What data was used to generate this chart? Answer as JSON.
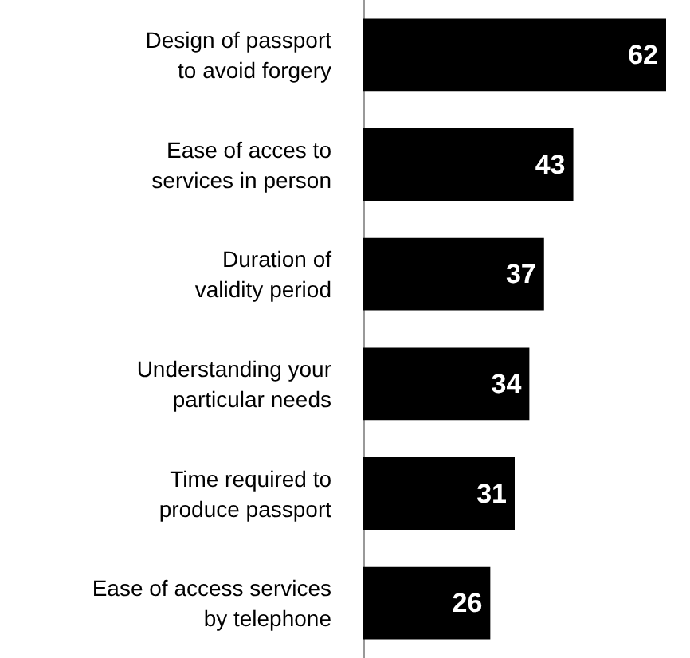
{
  "chart_data": {
    "type": "bar",
    "orientation": "horizontal",
    "categories": [
      "Design of passport\nto avoid forgery",
      "Ease of acces to\nservices in person",
      "Duration of\nvalidity period",
      "Understanding your\nparticular needs",
      "Time required to\nproduce passport",
      "Ease of access services\nby telephone"
    ],
    "values": [
      62,
      43,
      37,
      34,
      31,
      26
    ],
    "color": "#000000",
    "data_labels": true
  }
}
